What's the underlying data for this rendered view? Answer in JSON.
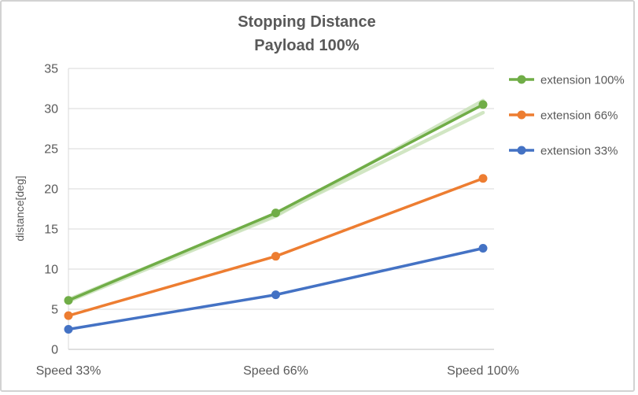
{
  "chart_data": {
    "type": "line",
    "title": "Stopping Distance",
    "subtitle": "Payload 100%",
    "categories": [
      "Speed 33%",
      "Speed 66%",
      "Speed 100%"
    ],
    "series": [
      {
        "name": "extension 100%",
        "color": "#70AD47",
        "values": [
          6.1,
          17.0,
          30.5
        ]
      },
      {
        "name": "extension 66%",
        "color": "#ED7D31",
        "values": [
          4.2,
          11.6,
          21.3
        ]
      },
      {
        "name": "extension 33%",
        "color": "#4472C4",
        "values": [
          2.5,
          6.8,
          12.6
        ]
      }
    ],
    "shadow_series": [
      {
        "name": "extension 100% faded run a",
        "color": "#C5E0B4",
        "values": [
          6.0,
          16.6,
          31.0
        ]
      },
      {
        "name": "extension 100% faded run b",
        "color": "#C5E0B4",
        "values": [
          6.2,
          16.8,
          29.5
        ]
      }
    ],
    "ylabel": "distance[deg]",
    "ylim": [
      0,
      35
    ],
    "ytick_step": 5,
    "grid": true,
    "legend_position": "right",
    "colors": {
      "grid": "#D9D9D9",
      "axis": "#BFBFBF",
      "text": "#595959"
    }
  }
}
